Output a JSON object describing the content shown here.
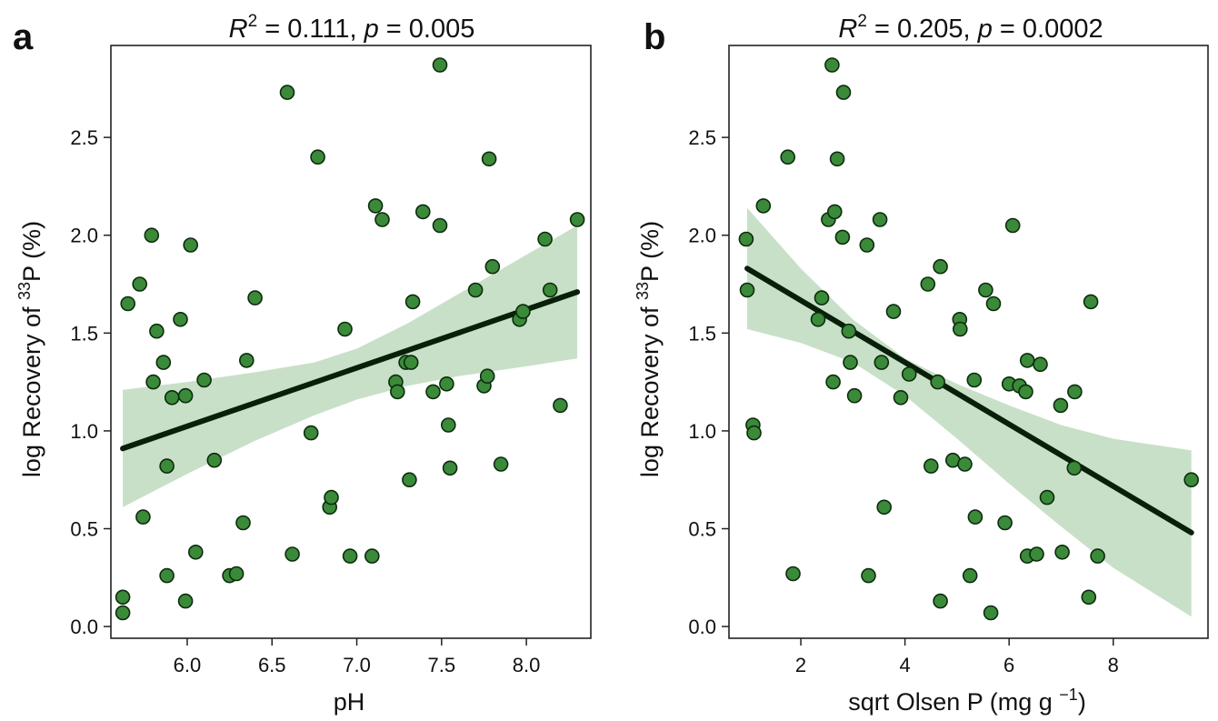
{
  "chart_data": [
    {
      "type": "scatter",
      "panel_label": "a",
      "title": {
        "r2_var": "R",
        "r2_sup": "2",
        "r2_value": " = 0.111, ",
        "p_var": "p",
        "p_value": " = 0.005"
      },
      "xlabel": "pH",
      "ylabel": {
        "prefix": "log  Recovery of ",
        "sup": "33",
        "suffix": "P (%)"
      },
      "xlim": [
        5.55,
        8.38
      ],
      "ylim": [
        -0.06,
        2.97
      ],
      "xticks": [
        6.0,
        6.5,
        7.0,
        7.5,
        8.0
      ],
      "xtick_labels": [
        "6.0",
        "6.5",
        "7.0",
        "7.5",
        "8.0"
      ],
      "yticks": [
        0.0,
        0.5,
        1.0,
        1.5,
        2.0,
        2.5
      ],
      "ytick_labels": [
        "0.0",
        "0.5",
        "1.0",
        "1.5",
        "2.0",
        "2.5"
      ],
      "points": [
        [
          5.62,
          0.15
        ],
        [
          5.62,
          0.07
        ],
        [
          5.65,
          1.65
        ],
        [
          5.72,
          1.75
        ],
        [
          5.74,
          0.56
        ],
        [
          5.79,
          2.0
        ],
        [
          5.8,
          1.25
        ],
        [
          5.82,
          1.51
        ],
        [
          5.86,
          1.35
        ],
        [
          5.88,
          0.82
        ],
        [
          5.88,
          0.26
        ],
        [
          5.91,
          1.17
        ],
        [
          5.96,
          1.57
        ],
        [
          5.99,
          1.18
        ],
        [
          5.99,
          0.13
        ],
        [
          6.02,
          1.95
        ],
        [
          6.05,
          0.38
        ],
        [
          6.1,
          1.26
        ],
        [
          6.16,
          0.85
        ],
        [
          6.25,
          0.26
        ],
        [
          6.29,
          0.27
        ],
        [
          6.33,
          0.53
        ],
        [
          6.35,
          1.36
        ],
        [
          6.4,
          1.68
        ],
        [
          6.59,
          2.73
        ],
        [
          6.62,
          0.37
        ],
        [
          6.73,
          0.99
        ],
        [
          6.77,
          2.4
        ],
        [
          6.84,
          0.61
        ],
        [
          6.85,
          0.66
        ],
        [
          6.93,
          1.52
        ],
        [
          6.96,
          0.36
        ],
        [
          7.09,
          0.36
        ],
        [
          7.11,
          2.15
        ],
        [
          7.15,
          2.08
        ],
        [
          7.23,
          1.25
        ],
        [
          7.24,
          1.2
        ],
        [
          7.29,
          1.35
        ],
        [
          7.31,
          0.75
        ],
        [
          7.32,
          1.35
        ],
        [
          7.33,
          1.66
        ],
        [
          7.39,
          2.12
        ],
        [
          7.45,
          1.2
        ],
        [
          7.49,
          2.05
        ],
        [
          7.49,
          2.87
        ],
        [
          7.53,
          1.24
        ],
        [
          7.54,
          1.03
        ],
        [
          7.55,
          0.81
        ],
        [
          7.7,
          1.72
        ],
        [
          7.75,
          1.23
        ],
        [
          7.77,
          1.28
        ],
        [
          7.78,
          2.39
        ],
        [
          7.8,
          1.84
        ],
        [
          7.85,
          0.83
        ],
        [
          7.96,
          1.57
        ],
        [
          7.98,
          1.61
        ],
        [
          8.11,
          1.98
        ],
        [
          8.14,
          1.72
        ],
        [
          8.2,
          1.13
        ],
        [
          8.3,
          2.08
        ]
      ],
      "fit": {
        "x": [
          5.62,
          8.3
        ],
        "y": [
          0.91,
          1.71
        ]
      },
      "band": [
        {
          "x": 5.62,
          "lo": 0.61,
          "hi": 1.21
        },
        {
          "x": 6.0,
          "lo": 0.78,
          "hi": 1.25
        },
        {
          "x": 6.4,
          "lo": 0.95,
          "hi": 1.3
        },
        {
          "x": 6.75,
          "lo": 1.08,
          "hi": 1.35
        },
        {
          "x": 7.0,
          "lo": 1.16,
          "hi": 1.42
        },
        {
          "x": 7.3,
          "lo": 1.23,
          "hi": 1.55
        },
        {
          "x": 7.6,
          "lo": 1.28,
          "hi": 1.7
        },
        {
          "x": 8.0,
          "lo": 1.33,
          "hi": 1.9
        },
        {
          "x": 8.3,
          "lo": 1.37,
          "hi": 2.05
        }
      ]
    },
    {
      "type": "scatter",
      "panel_label": "b",
      "title": {
        "r2_var": "R",
        "r2_sup": "2",
        "r2_value": " = 0.205, ",
        "p_var": "p",
        "p_value": " = 0.0002"
      },
      "xlabel": {
        "text": "sqrt Olsen P (mg g ",
        "sup": "−1",
        "suffix": ")"
      },
      "ylabel": {
        "prefix": "log  Recovery of ",
        "sup": "33",
        "suffix": "P (%)"
      },
      "xlim": [
        0.62,
        9.82
      ],
      "ylim": [
        -0.06,
        2.97
      ],
      "xticks": [
        2,
        4,
        6,
        8
      ],
      "xtick_labels": [
        "2",
        "4",
        "6",
        "8"
      ],
      "yticks": [
        0.0,
        0.5,
        1.0,
        1.5,
        2.0,
        2.5
      ],
      "ytick_labels": [
        "0.0",
        "0.5",
        "1.0",
        "1.5",
        "2.0",
        "2.5"
      ],
      "points": [
        [
          0.95,
          1.98
        ],
        [
          0.97,
          1.72
        ],
        [
          1.08,
          1.03
        ],
        [
          1.1,
          0.99
        ],
        [
          1.28,
          2.15
        ],
        [
          1.75,
          2.4
        ],
        [
          1.85,
          0.27
        ],
        [
          2.33,
          1.57
        ],
        [
          2.4,
          1.68
        ],
        [
          2.53,
          2.08
        ],
        [
          2.6,
          2.87
        ],
        [
          2.62,
          1.25
        ],
        [
          2.65,
          2.12
        ],
        [
          2.7,
          2.39
        ],
        [
          2.8,
          1.99
        ],
        [
          2.82,
          2.73
        ],
        [
          2.92,
          1.51
        ],
        [
          2.95,
          1.35
        ],
        [
          3.03,
          1.18
        ],
        [
          3.27,
          1.95
        ],
        [
          3.3,
          0.26
        ],
        [
          3.52,
          2.08
        ],
        [
          3.55,
          1.35
        ],
        [
          3.6,
          0.61
        ],
        [
          3.78,
          1.61
        ],
        [
          3.92,
          1.17
        ],
        [
          4.08,
          1.29
        ],
        [
          4.44,
          1.75
        ],
        [
          4.5,
          0.82
        ],
        [
          4.63,
          1.25
        ],
        [
          4.68,
          1.84
        ],
        [
          4.68,
          0.13
        ],
        [
          4.92,
          0.85
        ],
        [
          5.05,
          1.57
        ],
        [
          5.06,
          1.52
        ],
        [
          5.15,
          0.83
        ],
        [
          5.25,
          0.26
        ],
        [
          5.33,
          1.26
        ],
        [
          5.35,
          0.56
        ],
        [
          5.55,
          1.72
        ],
        [
          5.65,
          0.07
        ],
        [
          5.7,
          1.65
        ],
        [
          5.92,
          0.53
        ],
        [
          6.0,
          1.24
        ],
        [
          6.07,
          2.05
        ],
        [
          6.2,
          1.23
        ],
        [
          6.32,
          1.2
        ],
        [
          6.35,
          1.36
        ],
        [
          6.35,
          0.36
        ],
        [
          6.53,
          0.37
        ],
        [
          6.6,
          1.34
        ],
        [
          6.73,
          0.66
        ],
        [
          6.99,
          1.13
        ],
        [
          7.02,
          0.38
        ],
        [
          7.25,
          0.81
        ],
        [
          7.26,
          1.2
        ],
        [
          7.53,
          0.15
        ],
        [
          7.57,
          1.66
        ],
        [
          7.7,
          0.36
        ],
        [
          9.5,
          0.75
        ]
      ],
      "fit": {
        "x": [
          0.97,
          9.5
        ],
        "y": [
          1.83,
          0.48
        ]
      },
      "band": [
        {
          "x": 0.97,
          "lo": 1.52,
          "hi": 2.14
        },
        {
          "x": 2.0,
          "lo": 1.45,
          "hi": 1.83
        },
        {
          "x": 3.0,
          "lo": 1.35,
          "hi": 1.57
        },
        {
          "x": 4.0,
          "lo": 1.18,
          "hi": 1.37
        },
        {
          "x": 5.0,
          "lo": 0.96,
          "hi": 1.24
        },
        {
          "x": 6.0,
          "lo": 0.73,
          "hi": 1.13
        },
        {
          "x": 7.0,
          "lo": 0.51,
          "hi": 1.03
        },
        {
          "x": 8.0,
          "lo": 0.3,
          "hi": 0.96
        },
        {
          "x": 9.5,
          "lo": 0.05,
          "hi": 0.9
        }
      ]
    }
  ],
  "colors": {
    "point_fill": "#3a8a3a",
    "point_stroke": "#0d2b0d",
    "fit_line": "#0a1f0a",
    "band": "#c8e0c8",
    "axis": "#222222"
  }
}
